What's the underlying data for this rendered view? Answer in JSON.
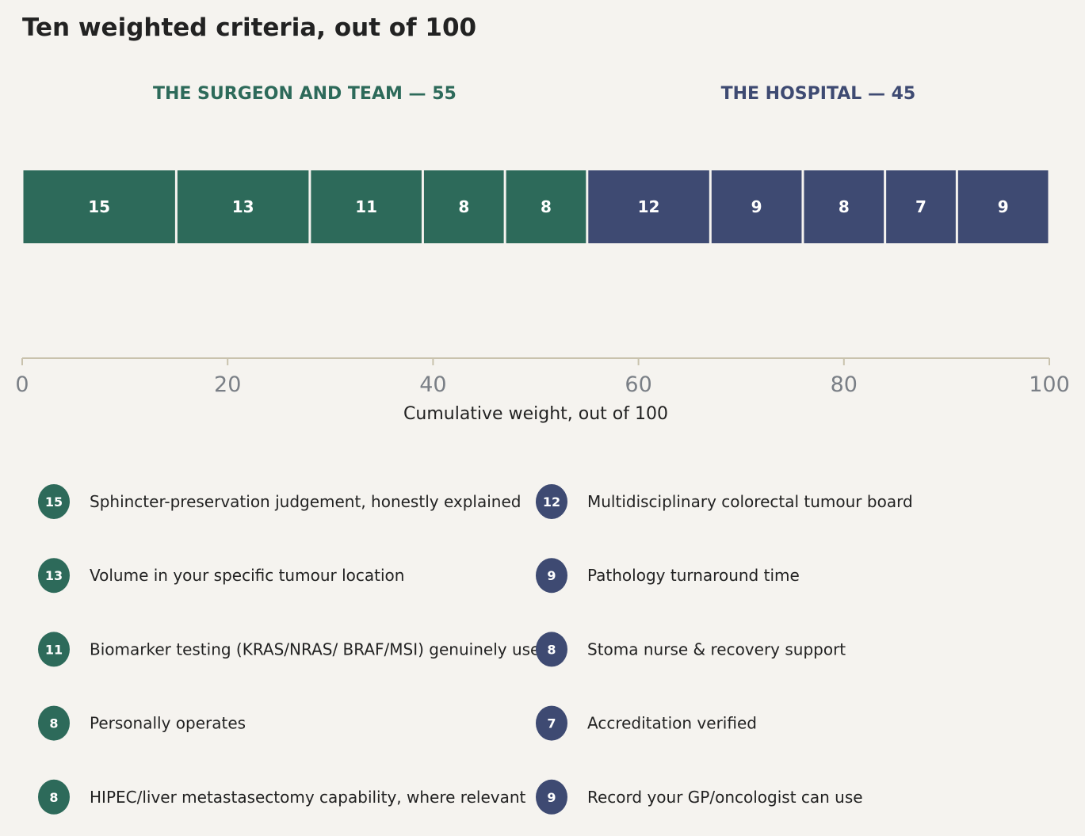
{
  "chart_data": {
    "type": "bar",
    "orientation": "horizontal-stacked",
    "title": "Ten weighted criteria, out of 100",
    "xlabel": "Cumulative weight, out of 100",
    "xlim": [
      0,
      100
    ],
    "xticks": [
      "0",
      "20",
      "40",
      "60",
      "80",
      "100"
    ],
    "groups": [
      {
        "label": "THE SURGEON AND TEAM — 55",
        "color": "#2d6a5a",
        "segments": [
          {
            "value": 15,
            "label": "Sphincter-preservation judgement, honestly explained"
          },
          {
            "value": 13,
            "label": "Volume in your specific tumour location"
          },
          {
            "value": 11,
            "label": "Biomarker testing (KRAS/NRAS/ BRAF/MSI) genuinely used"
          },
          {
            "value": 8,
            "label": "Personally operates"
          },
          {
            "value": 8,
            "label": "HIPEC/liver metastasectomy capability, where relevant"
          }
        ]
      },
      {
        "label": "THE HOSPITAL — 45",
        "color": "#3e4a72",
        "segments": [
          {
            "value": 12,
            "label": "Multidisciplinary colorectal tumour board"
          },
          {
            "value": 9,
            "label": "Pathology turnaround time"
          },
          {
            "value": 8,
            "label": "Stoma nurse & recovery support"
          },
          {
            "value": 7,
            "label": "Accreditation verified"
          },
          {
            "value": 9,
            "label": "Record your GP/oncologist can use"
          }
        ]
      }
    ]
  }
}
